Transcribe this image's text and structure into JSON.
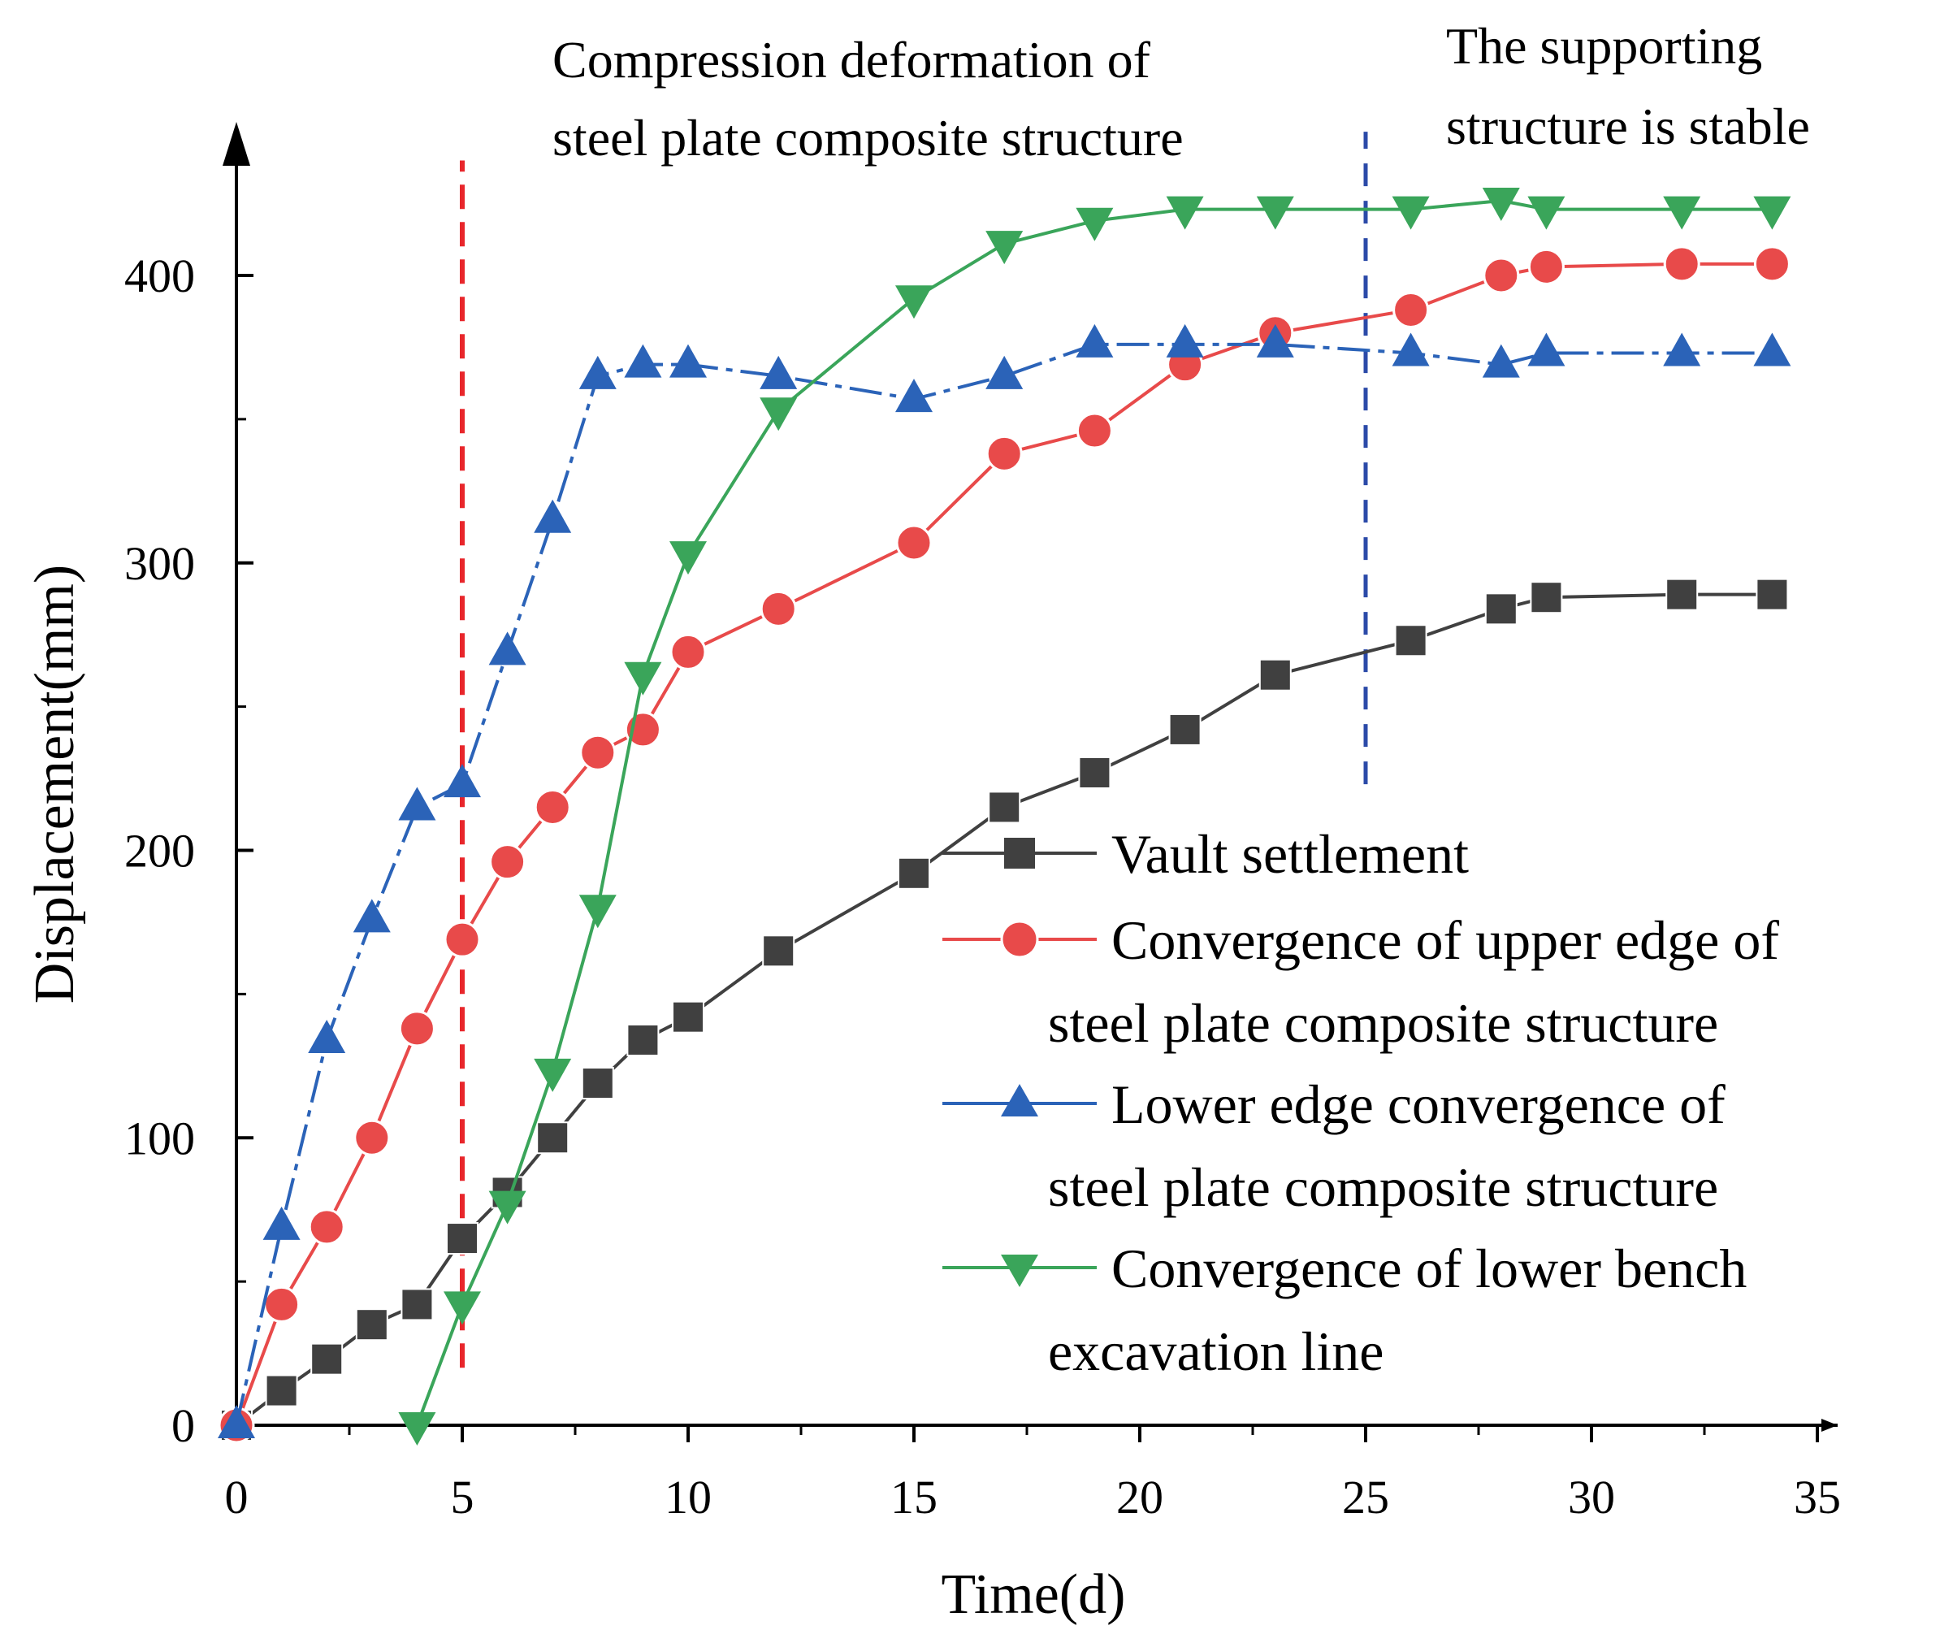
{
  "chart_data": {
    "type": "line",
    "title": "",
    "xlabel": "Time(d)",
    "ylabel": "Displacement(mm)",
    "xlim": [
      0,
      35
    ],
    "ylim": [
      0,
      430
    ],
    "x_ticks": [
      0,
      5,
      10,
      15,
      20,
      25,
      30,
      35
    ],
    "y_ticks": [
      0,
      100,
      200,
      300,
      400
    ],
    "grid": false,
    "legend_position": "bottom-right",
    "series": [
      {
        "name": "Vault settlement",
        "legend_lines": [
          "Vault settlement"
        ],
        "color": "#404040",
        "marker": "square",
        "dash": "solid",
        "x": [
          0,
          1,
          2,
          3,
          4,
          5,
          6,
          7,
          8,
          9,
          10,
          12,
          15,
          17,
          19,
          21,
          23,
          26,
          28,
          29,
          32,
          34
        ],
        "y": [
          0,
          12,
          23,
          35,
          42,
          65,
          81,
          100,
          119,
          134,
          142,
          165,
          192,
          215,
          227,
          242,
          261,
          273,
          284,
          288,
          289,
          289
        ]
      },
      {
        "name": "Convergence of upper edge of steel plate composite structure",
        "legend_lines": [
          "Convergence of upper edge of",
          "steel plate composite structure"
        ],
        "color": "#e84a4a",
        "marker": "circle",
        "dash": "solid",
        "x": [
          0,
          1,
          2,
          3,
          4,
          5,
          6,
          7,
          8,
          9,
          10,
          12,
          15,
          17,
          19,
          21,
          23,
          26,
          28,
          29,
          32,
          34
        ],
        "y": [
          0,
          42,
          69,
          100,
          138,
          169,
          196,
          215,
          234,
          242,
          269,
          284,
          307,
          338,
          346,
          369,
          380,
          388,
          400,
          403,
          404,
          404
        ]
      },
      {
        "name": "Lower edge convergence of steel plate composite structure",
        "legend_lines": [
          "Lower edge convergence of",
          "steel plate composite structure"
        ],
        "color": "#2b63b8",
        "marker": "triangle-up",
        "dash": "dashdot",
        "x": [
          0,
          1,
          2,
          3,
          4,
          5,
          6,
          7,
          8,
          9,
          10,
          12,
          15,
          17,
          19,
          21,
          23,
          26,
          28,
          29,
          32,
          34
        ],
        "y": [
          0,
          69,
          134,
          176,
          215,
          223,
          269,
          315,
          365,
          369,
          369,
          365,
          357,
          365,
          376,
          376,
          376,
          373,
          369,
          373,
          373,
          373
        ]
      },
      {
        "name": "Convergence of lower bench excavation line",
        "legend_lines": [
          "Convergence of lower bench",
          "excavation line"
        ],
        "color": "#3aa55a",
        "marker": "triangle-down",
        "dash": "solid",
        "x": [
          4,
          5,
          6,
          7,
          8,
          9,
          10,
          12,
          15,
          17,
          19,
          21,
          23,
          26,
          28,
          29,
          32,
          34
        ],
        "y": [
          0,
          42,
          77,
          123,
          180,
          261,
          303,
          353,
          392,
          411,
          419,
          423,
          423,
          423,
          426,
          423,
          423,
          423
        ]
      }
    ],
    "reference_lines": [
      {
        "x": 5,
        "y_from": 20,
        "y_to": 440,
        "color": "#e8262b"
      },
      {
        "x": 25,
        "y_from": 223,
        "y_to": 450,
        "color": "#2b4aa8"
      }
    ],
    "annotations": [
      {
        "lines": [
          "Compression deformation of",
          "steel plate composite structure"
        ]
      },
      {
        "lines": [
          "The supporting",
          "structure is stable"
        ]
      }
    ]
  }
}
